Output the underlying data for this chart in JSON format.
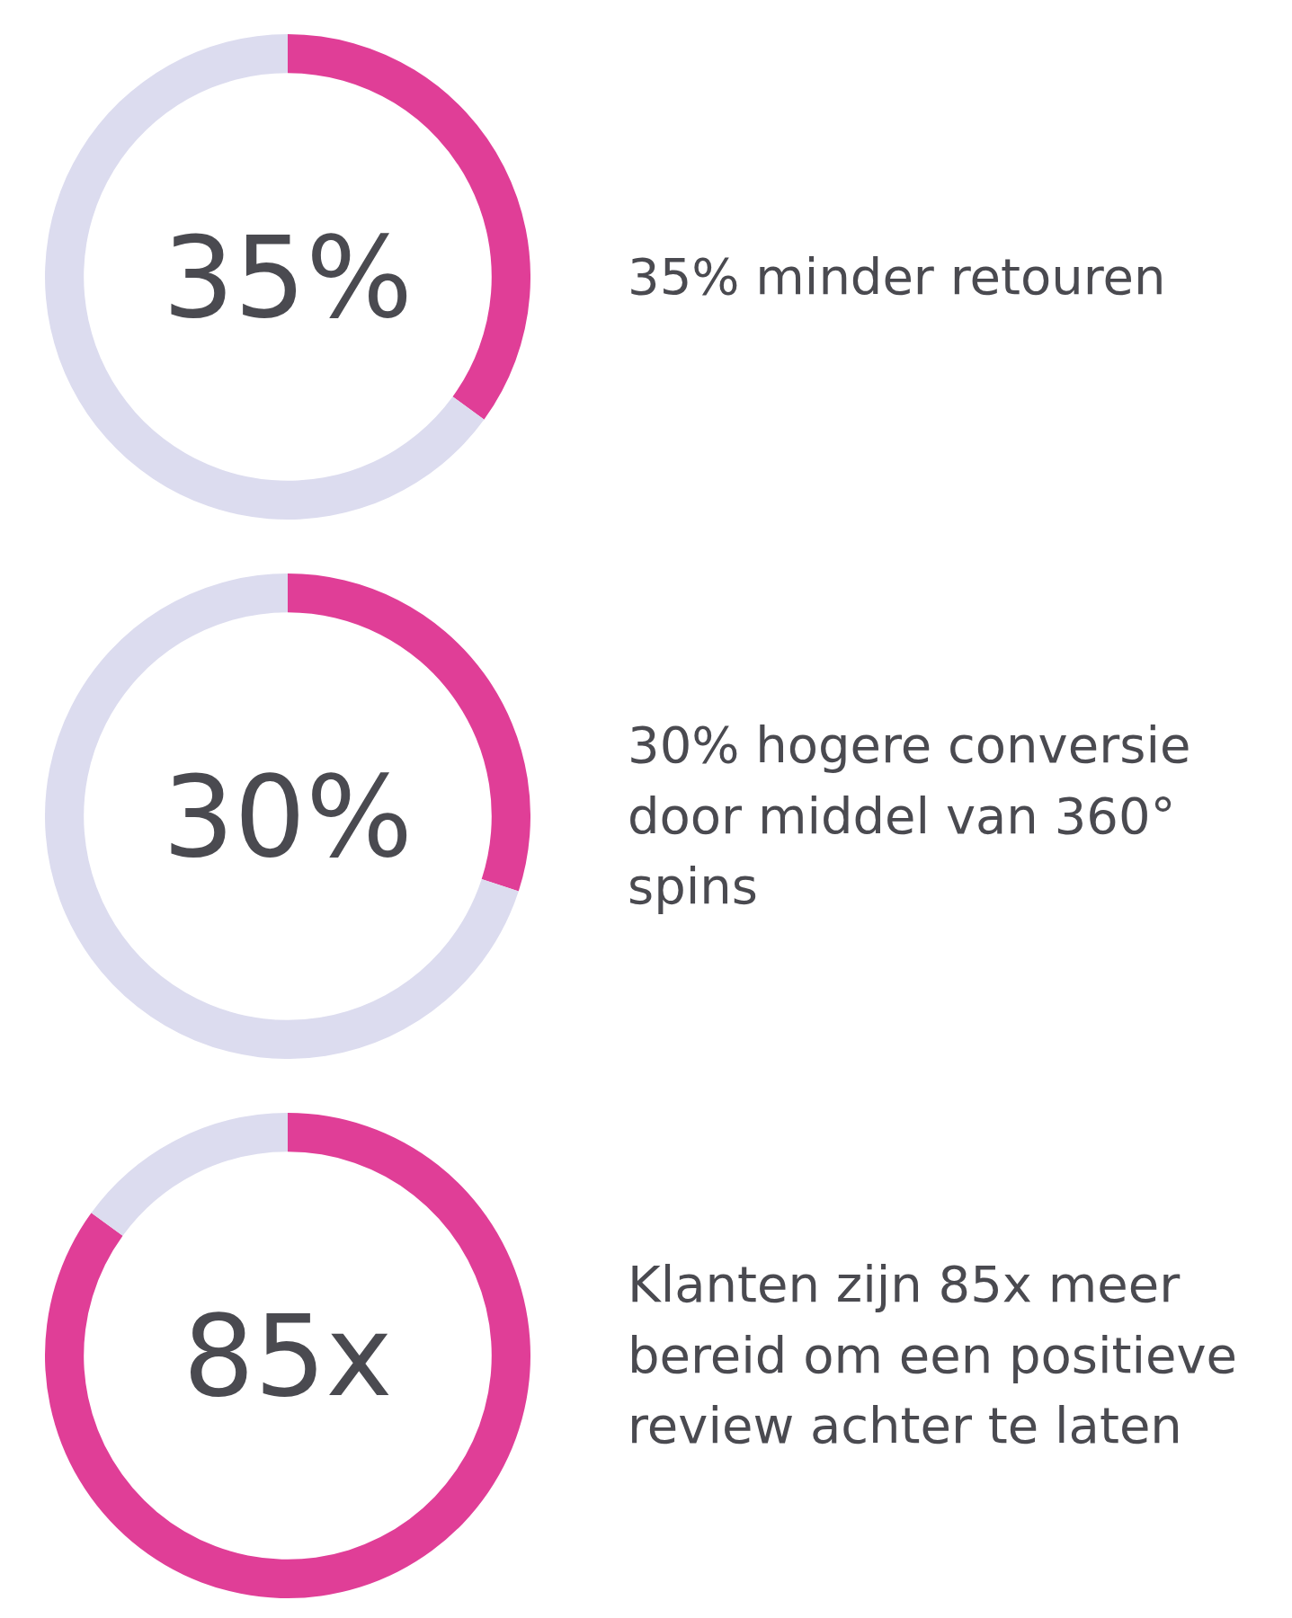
{
  "chart_data": [
    {
      "type": "donut",
      "categories": [
        null,
        null
      ],
      "values": [
        35,
        65
      ],
      "colors": [
        "#e03e97",
        "#dcdcef"
      ],
      "annotations": [
        "35%",
        "35% minder retouren"
      ]
    },
    {
      "type": "donut",
      "categories": [
        null,
        null
      ],
      "values": [
        30,
        70
      ],
      "colors": [
        "#e03e97",
        "#dcdcef"
      ],
      "annotations": [
        "30%",
        "30% hogere conversie door middel van 360° spins"
      ]
    },
    {
      "type": "donut",
      "categories": [
        null,
        null
      ],
      "values": [
        85,
        15
      ],
      "colors": [
        "#e03e97",
        "#dcdcef"
      ],
      "annotations": [
        "85x",
        "Klanten zijn 85x meer bereid om een positieve review achter te laten"
      ]
    }
  ]
}
